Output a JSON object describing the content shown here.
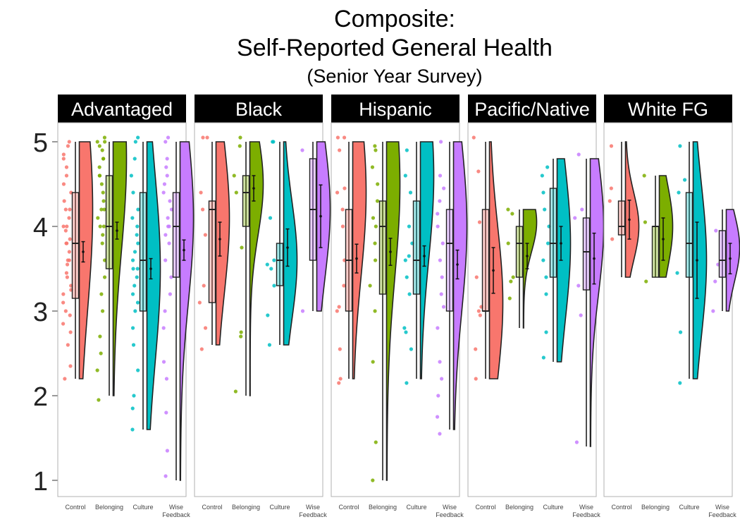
{
  "title": {
    "line1": "Composite:",
    "line2": "Self-Reported General Health",
    "subtitle": "(Senior Year Survey)"
  },
  "colors": {
    "Control": "#F8766D",
    "Belonging": "#7CAE00",
    "Culture": "#00BFC4",
    "Wise Feedback": "#C77CFF"
  },
  "chart_data": {
    "type": "raincloud",
    "y_ticks": [
      1,
      2,
      3,
      4,
      5
    ],
    "ylim": [
      0.95,
      5.25
    ],
    "condition_labels": [
      "Control",
      "Belonging",
      "Culture",
      "Wise\nFeedback"
    ],
    "panels": [
      {
        "name": "Advantaged",
        "groups": [
          {
            "condition": "Control",
            "min": 2.2,
            "q1": 3.15,
            "median": 3.8,
            "q3": 4.4,
            "max": 5.0,
            "mean": 3.7,
            "se": 0.12,
            "vmin": 2.2,
            "vmax": 5.0,
            "mode": 4.2,
            "spread": 1.2,
            "pts": [
              2.2,
              2.35,
              2.6,
              2.75,
              2.85,
              2.95,
              3.0,
              3.1,
              3.2,
              3.25,
              3.3,
              3.4,
              3.45,
              3.55,
              3.6,
              3.6,
              3.7,
              3.8,
              3.8,
              3.85,
              3.95,
              4.0,
              4.0,
              4.1,
              4.2,
              4.2,
              4.3,
              4.4,
              4.5,
              4.6,
              4.7,
              4.8,
              4.85,
              4.95,
              5.0
            ]
          },
          {
            "condition": "Belonging",
            "min": 2.0,
            "q1": 3.5,
            "median": 4.0,
            "q3": 4.6,
            "max": 5.0,
            "mean": 3.95,
            "se": 0.1,
            "vmin": 2.0,
            "vmax": 5.0,
            "mode": 4.8,
            "spread": 1.1,
            "pts": [
              1.95,
              2.3,
              2.5,
              2.7,
              3.0,
              3.2,
              3.4,
              3.6,
              3.8,
              3.9,
              4.0,
              4.0,
              4.1,
              4.2,
              4.2,
              4.3,
              4.4,
              4.5,
              4.6,
              4.6,
              4.7,
              4.8,
              4.8,
              4.9,
              4.95,
              5.0,
              5.0,
              5.05
            ]
          },
          {
            "condition": "Culture",
            "min": 1.6,
            "q1": 3.0,
            "median": 3.6,
            "q3": 4.4,
            "max": 5.0,
            "mean": 3.5,
            "se": 0.12,
            "vmin": 1.6,
            "vmax": 5.0,
            "mode": 3.5,
            "spread": 1.1,
            "pts": [
              1.6,
              1.85,
              2.0,
              2.3,
              2.6,
              2.8,
              3.0,
              3.1,
              3.2,
              3.3,
              3.4,
              3.5,
              3.5,
              3.6,
              3.7,
              3.8,
              3.9,
              4.0,
              4.1,
              4.2,
              4.4,
              4.6,
              4.8,
              5.0,
              5.05
            ]
          },
          {
            "condition": "Wise Feedback",
            "min": 1.0,
            "q1": 3.4,
            "median": 4.0,
            "q3": 4.4,
            "max": 5.0,
            "mean": 3.72,
            "se": 0.12,
            "vmin": 1.0,
            "vmax": 5.0,
            "mode": 4.1,
            "spread": 1.0,
            "pts": [
              1.05,
              1.35,
              1.8,
              2.2,
              2.4,
              2.8,
              3.0,
              3.2,
              3.4,
              3.6,
              3.8,
              3.9,
              4.0,
              4.0,
              4.1,
              4.2,
              4.3,
              4.4,
              4.5,
              4.6,
              4.7,
              4.8,
              5.0,
              5.05
            ]
          }
        ]
      },
      {
        "name": "Black",
        "groups": [
          {
            "condition": "Control",
            "min": 2.6,
            "q1": 3.1,
            "median": 4.2,
            "q3": 4.3,
            "max": 5.0,
            "mean": 3.85,
            "se": 0.2,
            "vmin": 2.6,
            "vmax": 5.0,
            "mode": 4.1,
            "spread": 0.9,
            "pts": [
              2.55,
              2.8,
              3.1,
              3.3,
              3.9,
              4.2,
              4.4,
              5.05,
              5.05
            ]
          },
          {
            "condition": "Belonging",
            "min": 2.0,
            "q1": 4.0,
            "median": 4.4,
            "q3": 4.6,
            "max": 5.0,
            "mean": 4.45,
            "se": 0.15,
            "vmin": 2.0,
            "vmax": 5.0,
            "mode": 4.5,
            "spread": 0.6,
            "pts": [
              2.05,
              2.7,
              2.75,
              3.75,
              4.4,
              4.6,
              4.95,
              5.05
            ]
          },
          {
            "condition": "Culture",
            "min": 2.6,
            "q1": 3.3,
            "median": 3.6,
            "q3": 3.8,
            "max": 5.0,
            "mean": 3.75,
            "se": 0.22,
            "vmin": 2.6,
            "vmax": 5.0,
            "mode": 3.6,
            "spread": 0.7,
            "pts": [
              2.6,
              2.95,
              3.3,
              3.5,
              3.55,
              3.6,
              4.1,
              5.0,
              5.0
            ]
          },
          {
            "condition": "Wise Feedback",
            "min": 3.0,
            "q1": 3.6,
            "median": 4.2,
            "q3": 4.8,
            "max": 5.0,
            "mean": 4.12,
            "se": 0.37,
            "vmin": 3.0,
            "vmax": 5.0,
            "mode": 4.2,
            "spread": 0.8,
            "pts": [
              3.0,
              4.9
            ]
          }
        ]
      },
      {
        "name": "Hispanic",
        "groups": [
          {
            "condition": "Control",
            "min": 2.2,
            "q1": 3.0,
            "median": 3.6,
            "q3": 4.2,
            "max": 5.0,
            "mean": 3.62,
            "se": 0.17,
            "vmin": 2.2,
            "vmax": 5.0,
            "mode": 4.4,
            "spread": 1.0,
            "pts": [
              2.15,
              2.2,
              2.55,
              3.0,
              3.05,
              3.3,
              3.6,
              4.0,
              4.2,
              4.4,
              4.45,
              4.9,
              5.05,
              5.05
            ]
          },
          {
            "condition": "Belonging",
            "min": 1.0,
            "q1": 3.2,
            "median": 4.0,
            "q3": 4.3,
            "max": 5.0,
            "mean": 3.7,
            "se": 0.16,
            "vmin": 1.0,
            "vmax": 5.0,
            "mode": 4.5,
            "spread": 1.1,
            "pts": [
              1.0,
              1.45,
              2.4,
              3.0,
              3.3,
              3.6,
              3.8,
              4.0,
              4.1,
              4.3,
              4.5,
              4.7,
              4.9,
              4.95
            ]
          },
          {
            "condition": "Culture",
            "min": 2.2,
            "q1": 3.2,
            "median": 3.6,
            "q3": 4.3,
            "max": 5.0,
            "mean": 3.65,
            "se": 0.12,
            "vmin": 2.2,
            "vmax": 5.0,
            "mode": 4.6,
            "spread": 1.0,
            "pts": [
              2.15,
              2.55,
              2.75,
              2.8,
              3.2,
              3.4,
              3.6,
              3.65,
              3.8,
              4.0,
              4.4,
              4.6,
              4.9
            ]
          },
          {
            "condition": "Wise Feedback",
            "min": 1.6,
            "q1": 3.0,
            "median": 3.8,
            "q3": 4.2,
            "max": 5.0,
            "mean": 3.55,
            "se": 0.17,
            "vmin": 1.6,
            "vmax": 5.0,
            "mode": 4.0,
            "spread": 1.0,
            "pts": [
              1.55,
              1.75,
              2.0,
              2.2,
              2.4,
              2.8,
              3.05,
              3.2,
              3.4,
              3.6,
              3.8,
              4.0,
              4.15,
              4.3,
              4.45,
              4.6,
              5.0
            ]
          }
        ]
      },
      {
        "name": "Pacific/Native",
        "groups": [
          {
            "condition": "Control",
            "min": 2.2,
            "q1": 3.0,
            "median": 3.0,
            "q3": 4.2,
            "max": 5.0,
            "mean": 3.48,
            "se": 0.27,
            "vmin": 2.2,
            "vmax": 5.0,
            "mode": 3.1,
            "spread": 0.9,
            "pts": [
              2.2,
              2.55,
              2.95,
              3.0,
              3.05,
              3.4,
              4.05,
              4.65,
              5.05
            ]
          },
          {
            "condition": "Belonging",
            "min": 2.8,
            "q1": 3.4,
            "median": 3.8,
            "q3": 4.0,
            "max": 4.2,
            "mean": 3.65,
            "se": 0.15,
            "vmin": 2.8,
            "vmax": 4.2,
            "mode": 4.05,
            "spread": 0.35,
            "pts": [
              3.15,
              3.35,
              3.4,
              3.8,
              4.15,
              4.2
            ]
          },
          {
            "condition": "Culture",
            "min": 2.4,
            "q1": 3.4,
            "median": 3.8,
            "q3": 4.45,
            "max": 4.8,
            "mean": 3.8,
            "se": 0.2,
            "vmin": 2.4,
            "vmax": 4.8,
            "mode": 3.8,
            "spread": 0.9,
            "pts": [
              2.45,
              2.75,
              3.2,
              3.4,
              3.6,
              3.8,
              4.0,
              4.2,
              4.4,
              4.6,
              4.7
            ]
          },
          {
            "condition": "Wise Feedback",
            "min": 1.4,
            "q1": 3.25,
            "median": 3.7,
            "q3": 4.1,
            "max": 4.8,
            "mean": 3.62,
            "se": 0.3,
            "vmin": 1.4,
            "vmax": 4.8,
            "mode": 4.0,
            "spread": 0.8,
            "pts": [
              1.45,
              2.95,
              3.3,
              4.1,
              4.2,
              4.85
            ]
          }
        ]
      },
      {
        "name": "White FG",
        "groups": [
          {
            "condition": "Control",
            "min": 3.4,
            "q1": 3.9,
            "median": 4.0,
            "q3": 4.3,
            "max": 5.0,
            "mean": 4.08,
            "se": 0.23,
            "vmin": 3.4,
            "vmax": 5.0,
            "mode": 4.0,
            "spread": 0.4,
            "pts": [
              3.85,
              4.3,
              4.45,
              4.95
            ]
          },
          {
            "condition": "Belonging",
            "min": 3.4,
            "q1": 3.4,
            "median": 4.0,
            "q3": 4.0,
            "max": 4.6,
            "mean": 3.85,
            "se": 0.25,
            "vmin": 3.4,
            "vmax": 4.6,
            "mode": 4.0,
            "spread": 0.5,
            "pts": [
              3.35,
              4.05,
              4.6
            ]
          },
          {
            "condition": "Culture",
            "min": 2.2,
            "q1": 3.4,
            "median": 3.8,
            "q3": 4.4,
            "max": 5.0,
            "mean": 3.6,
            "se": 0.45,
            "vmin": 2.2,
            "vmax": 5.0,
            "mode": 3.6,
            "spread": 0.9,
            "pts": [
              2.15,
              2.75,
              3.45,
              4.4,
              4.55,
              4.95
            ]
          },
          {
            "condition": "Wise Feedback",
            "min": 3.0,
            "q1": 3.4,
            "median": 3.6,
            "q3": 3.95,
            "max": 4.2,
            "mean": 3.62,
            "se": 0.18,
            "vmin": 3.0,
            "vmax": 4.2,
            "mode": 3.75,
            "spread": 0.4,
            "pts": [
              3.0,
              3.35,
              3.55,
              3.95
            ]
          }
        ]
      }
    ]
  }
}
